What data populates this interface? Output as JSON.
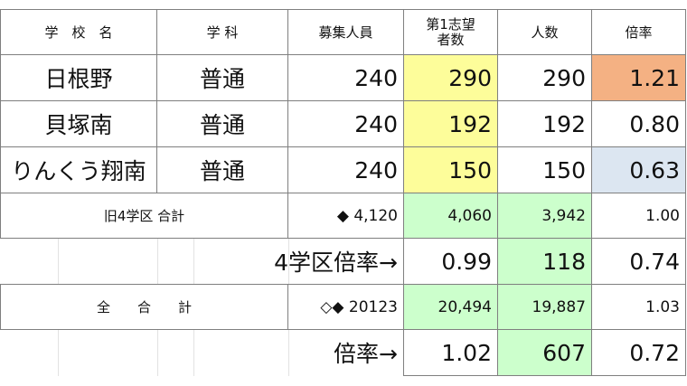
{
  "header": {
    "school": "学　校　名",
    "course": "学 科",
    "capacity": "募集人員",
    "first_choice_line1": "第1志望",
    "first_choice_line2": "者数",
    "count": "人数",
    "ratio": "倍率"
  },
  "schools": [
    {
      "name": "日根野",
      "course": "普通",
      "capacity": "240",
      "first_choice": "290",
      "count": "290",
      "ratio": "1.21"
    },
    {
      "name": "貝塚南",
      "course": "普通",
      "capacity": "240",
      "first_choice": "192",
      "count": "192",
      "ratio": "0.80"
    },
    {
      "name": "りんくう翔南",
      "course": "普通",
      "capacity": "240",
      "first_choice": "150",
      "count": "150",
      "ratio": "0.63"
    }
  ],
  "district_total": {
    "label": "旧4学区  合計",
    "capacity": "◆ 4,120",
    "first_choice": "4,060",
    "count": "3,942",
    "ratio": "1.00"
  },
  "district_ratio": {
    "label": "4学区倍率→",
    "ratio1": "0.99",
    "diff": "118",
    "ratio2": "0.74"
  },
  "grand_total": {
    "label": "全　　合　　計",
    "capacity": "◇◆ 20123",
    "first_choice": "20,494",
    "count": "19,887",
    "ratio": "1.03"
  },
  "grand_ratio": {
    "label": "倍率→",
    "ratio1": "1.02",
    "diff": "607",
    "ratio2": "0.72"
  },
  "colors": {
    "yellow": "#fdfd9a",
    "orange": "#f4b183",
    "blue": "#dce6f1",
    "green": "#ccffcc"
  }
}
